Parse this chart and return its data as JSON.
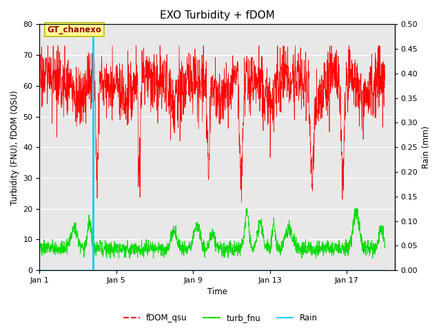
{
  "title": "EXO Turbidity + fDOM",
  "xlabel": "Time",
  "ylabel_left": "Turbidity (FNU), fDOM (QSU)",
  "ylabel_right": "Rain (mm)",
  "ylim_left": [
    0,
    80
  ],
  "ylim_right": [
    0.0,
    0.5
  ],
  "yticks_left": [
    0,
    10,
    20,
    30,
    40,
    50,
    60,
    70,
    80
  ],
  "yticks_right": [
    0.0,
    0.05,
    0.1,
    0.15,
    0.2,
    0.25,
    0.3,
    0.35,
    0.4,
    0.45,
    0.5
  ],
  "xtick_labels": [
    "Jan 1",
    "Jan 5",
    "Jan 9",
    "Jan 13",
    "Jan 17"
  ],
  "xtick_positions": [
    0,
    4,
    8,
    12,
    16
  ],
  "xlim": [
    0,
    18.5
  ],
  "annotation_text": "GT_chanexo",
  "vline_x": 2.8,
  "colors": {
    "fDOM_qsu": "#ff0000",
    "turb_fnu": "#00dd00",
    "Rain": "#00ccff",
    "background": "#e8e8e8",
    "annotation_bg": "#ffff99",
    "annotation_border": "#bbbb00",
    "annotation_text": "#990000"
  },
  "legend_labels": [
    "fDOM_qsu",
    "turb_fnu",
    "Rain"
  ],
  "figsize": [
    6.4,
    4.8
  ],
  "dpi": 100
}
